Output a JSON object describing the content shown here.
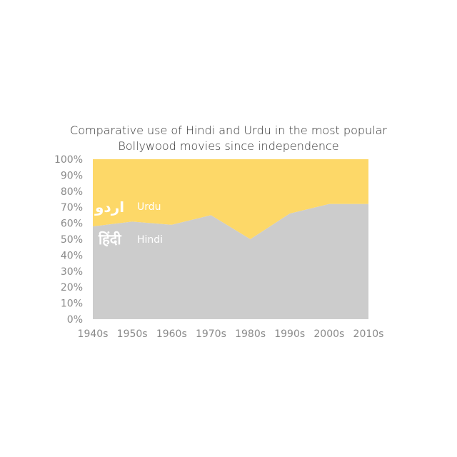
{
  "chart_data": {
    "type": "area",
    "stacked": true,
    "percent": true,
    "title_line1": "Comparative use of Hindi and Urdu in the most popular",
    "title_line2": "Bollywood movies since independence",
    "categories": [
      "1940s",
      "1950s",
      "1960s",
      "1970s",
      "1980s",
      "1990s",
      "2000s",
      "2010s"
    ],
    "ylim": [
      0,
      100
    ],
    "y_ticks": [
      "0%",
      "10%",
      "20%",
      "30%",
      "40%",
      "50%",
      "60%",
      "70%",
      "80%",
      "90%",
      "100%"
    ],
    "grid": false,
    "legend": "inline-left",
    "series": [
      {
        "name": "Hindi",
        "native_label": "हिंदी",
        "color": "#cccccc",
        "values": [
          58,
          61,
          59,
          65,
          50,
          66,
          72,
          72
        ]
      },
      {
        "name": "Urdu",
        "native_label": "اردو",
        "color": "#fdd868",
        "values": [
          42,
          39,
          41,
          35,
          50,
          34,
          28,
          28
        ]
      }
    ]
  }
}
